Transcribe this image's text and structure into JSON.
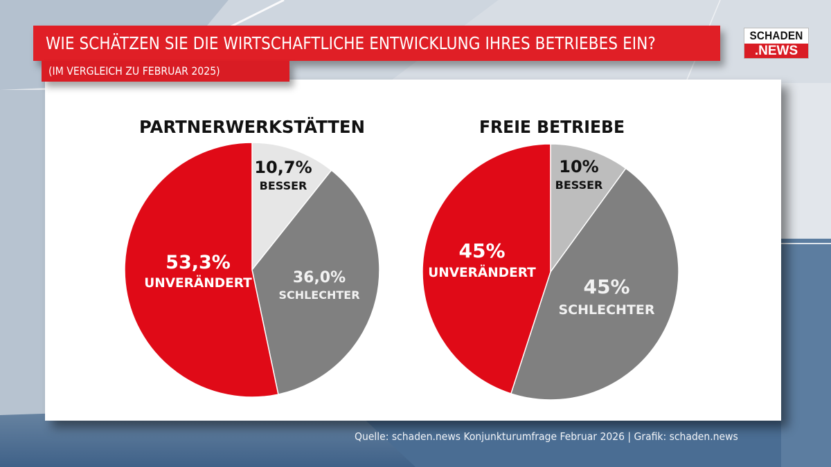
{
  "header": {
    "title": "WIE SCHÄTZEN SIE DIE WIRTSCHAFTLICHE ENTWICKLUNG IHRES BETRIEBES EIN?",
    "subtitle": "(IM VERGLEICH ZU FEBRUAR 2025)"
  },
  "logo": {
    "top": "SCHADEN",
    "bottom": ".NEWS"
  },
  "footer": {
    "source": "Quelle: schaden.news Konjunkturumfrage Februar 2026 | Grafik: schaden.news"
  },
  "colors": {
    "brand_red": "#e01f26",
    "unveraendert": "#e00a17",
    "schlechter": "#808080",
    "besser_1": "#e6e6e6",
    "besser_2": "#bdbdbd"
  },
  "chart_data": [
    {
      "type": "pie",
      "title": "PARTNERWERKSTÄTTEN",
      "start": "12 o'clock, clockwise",
      "slices": [
        {
          "label": "BESSER",
          "value": 10.7,
          "display": "10,7%",
          "color": "#e6e6e6",
          "text_color": "#111111"
        },
        {
          "label": "SCHLECHTER",
          "value": 36.0,
          "display": "36,0%",
          "color": "#808080",
          "text_color": "#f2f2f2"
        },
        {
          "label": "UNVERÄNDERT",
          "value": 53.3,
          "display": "53,3%",
          "color": "#e00a17",
          "text_color": "#ffffff"
        }
      ]
    },
    {
      "type": "pie",
      "title": "FREIE BETRIEBE",
      "start": "12 o'clock, clockwise",
      "slices": [
        {
          "label": "BESSER",
          "value": 10,
          "display": "10%",
          "color": "#bdbdbd",
          "text_color": "#111111"
        },
        {
          "label": "SCHLECHTER",
          "value": 45,
          "display": "45%",
          "color": "#808080",
          "text_color": "#f2f2f2"
        },
        {
          "label": "UNVERÄNDERT",
          "value": 45,
          "display": "45%",
          "color": "#e00a17",
          "text_color": "#ffffff"
        }
      ]
    }
  ]
}
